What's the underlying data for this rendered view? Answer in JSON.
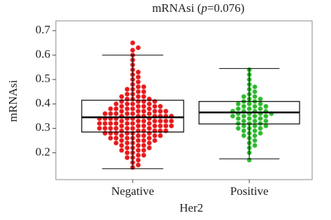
{
  "chart_data": {
    "type": "box",
    "title_prefix": "mRNAsi (",
    "title_italic": "p",
    "title_suffix": "=0.076)",
    "x_label": "Her2",
    "y_label": "mRNAsi",
    "categories": [
      "Negative",
      "Positive"
    ],
    "colors": [
      "#e31a1c",
      "#2eb82e"
    ],
    "boxes": [
      {
        "whisker_low": 0.135,
        "q1": 0.285,
        "median": 0.345,
        "q3": 0.415,
        "whisker_high": 0.6
      },
      {
        "whisker_low": 0.175,
        "q1": 0.318,
        "median": 0.365,
        "q3": 0.41,
        "whisker_high": 0.545
      }
    ],
    "points": [
      [
        0.14,
        0.15,
        0.16,
        0.17,
        0.18,
        0.18,
        0.19,
        0.19,
        0.2,
        0.2,
        0.21,
        0.21,
        0.21,
        0.22,
        0.22,
        0.22,
        0.23,
        0.23,
        0.23,
        0.24,
        0.24,
        0.24,
        0.24,
        0.25,
        0.25,
        0.25,
        0.25,
        0.26,
        0.26,
        0.26,
        0.26,
        0.26,
        0.27,
        0.27,
        0.27,
        0.27,
        0.27,
        0.28,
        0.28,
        0.28,
        0.28,
        0.28,
        0.28,
        0.29,
        0.29,
        0.29,
        0.29,
        0.29,
        0.29,
        0.3,
        0.3,
        0.3,
        0.3,
        0.3,
        0.3,
        0.3,
        0.31,
        0.31,
        0.31,
        0.31,
        0.31,
        0.31,
        0.31,
        0.32,
        0.32,
        0.32,
        0.32,
        0.32,
        0.32,
        0.32,
        0.33,
        0.33,
        0.33,
        0.33,
        0.33,
        0.33,
        0.33,
        0.34,
        0.34,
        0.34,
        0.34,
        0.34,
        0.34,
        0.34,
        0.35,
        0.35,
        0.35,
        0.35,
        0.35,
        0.35,
        0.35,
        0.36,
        0.36,
        0.36,
        0.36,
        0.36,
        0.36,
        0.37,
        0.37,
        0.37,
        0.37,
        0.37,
        0.37,
        0.38,
        0.38,
        0.38,
        0.38,
        0.38,
        0.39,
        0.39,
        0.39,
        0.39,
        0.39,
        0.4,
        0.4,
        0.4,
        0.4,
        0.41,
        0.41,
        0.41,
        0.41,
        0.42,
        0.42,
        0.42,
        0.43,
        0.43,
        0.43,
        0.44,
        0.44,
        0.45,
        0.45,
        0.46,
        0.46,
        0.47,
        0.47,
        0.48,
        0.49,
        0.5,
        0.51,
        0.52,
        0.53,
        0.54,
        0.56,
        0.58,
        0.6,
        0.62,
        0.63,
        0.65
      ],
      [
        0.17,
        0.2,
        0.22,
        0.23,
        0.24,
        0.25,
        0.26,
        0.27,
        0.27,
        0.28,
        0.28,
        0.29,
        0.29,
        0.3,
        0.3,
        0.3,
        0.31,
        0.31,
        0.31,
        0.32,
        0.32,
        0.32,
        0.33,
        0.33,
        0.33,
        0.34,
        0.34,
        0.34,
        0.35,
        0.35,
        0.35,
        0.35,
        0.36,
        0.36,
        0.36,
        0.36,
        0.37,
        0.37,
        0.37,
        0.37,
        0.38,
        0.38,
        0.38,
        0.39,
        0.39,
        0.39,
        0.4,
        0.4,
        0.4,
        0.41,
        0.41,
        0.42,
        0.42,
        0.43,
        0.43,
        0.44,
        0.45,
        0.46,
        0.47,
        0.48,
        0.5,
        0.52,
        0.54
      ]
    ],
    "ylim": [
      0.09,
      0.74
    ],
    "yticks": [
      0.2,
      0.3,
      0.4,
      0.5,
      0.6,
      0.7
    ]
  }
}
